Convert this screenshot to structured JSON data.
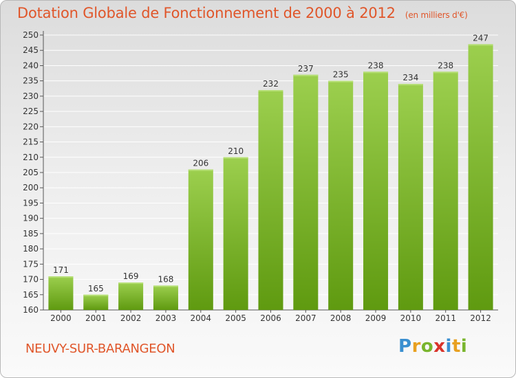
{
  "header": {
    "title": "Dotation Globale de Fonctionnement de 2000 à 2012",
    "subtitle": "(en milliers d'€)"
  },
  "footer": {
    "city": "NEUVY-SUR-BARANGEON",
    "logo_text": "Proxiti"
  },
  "colors": {
    "bar_top": "#9ccf4e",
    "bar_bottom": "#5f9a10",
    "accent": "#e0562a",
    "grid": "#ffffff"
  },
  "chart_data": {
    "type": "bar",
    "title": "Dotation Globale de Fonctionnement de 2000 à 2012",
    "subtitle": "(en milliers d'€)",
    "xlabel": "",
    "ylabel": "",
    "categories": [
      "2000",
      "2001",
      "2002",
      "2003",
      "2004",
      "2005",
      "2006",
      "2007",
      "2008",
      "2009",
      "2010",
      "2011",
      "2012"
    ],
    "values": [
      171,
      165,
      169,
      168,
      206,
      210,
      232,
      237,
      235,
      238,
      234,
      238,
      247
    ],
    "data_labels": [
      "171",
      "165",
      "169",
      "168",
      "206",
      "210",
      "232",
      "237",
      "235",
      "238",
      "234",
      "238",
      "247"
    ],
    "ylim": [
      160,
      250
    ],
    "yticks": [
      "160",
      "165",
      "170",
      "175",
      "180",
      "185",
      "190",
      "195",
      "200",
      "205",
      "210",
      "215",
      "220",
      "225",
      "230",
      "235",
      "240",
      "245",
      "250"
    ],
    "grid": true,
    "legend": "none"
  }
}
